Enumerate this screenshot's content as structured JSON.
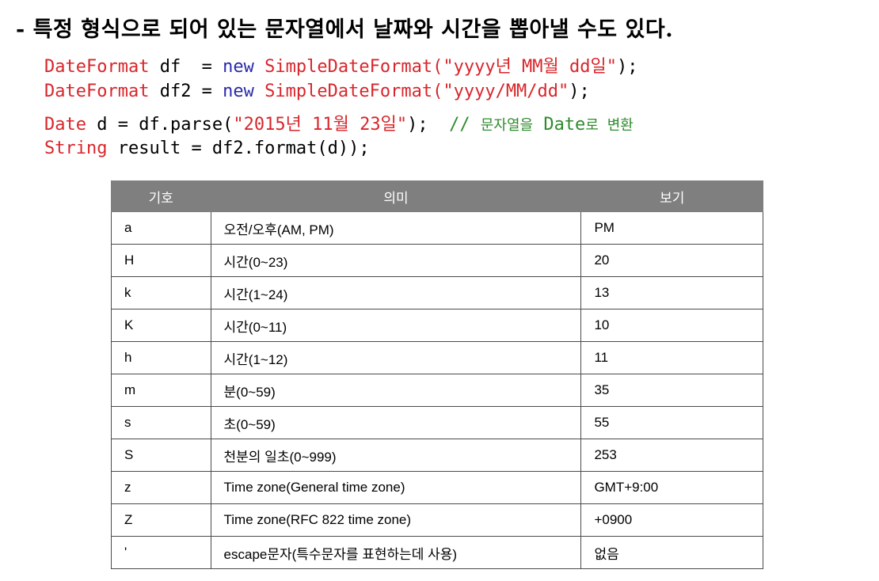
{
  "heading": "- 특정 형식으로 되어 있는 문자열에서 날짜와 시간을 뽑아낼 수도 있다.",
  "code": {
    "line1": {
      "type": "DateFormat",
      "var": " df  = ",
      "kw": "new",
      "cls": " SimpleDateFormat(",
      "str": "\"yyyy년 MM월 dd일\"",
      "end": ");"
    },
    "line2": {
      "type": "DateFormat",
      "var": " df2 = ",
      "kw": "new",
      "cls": " SimpleDateFormat(",
      "str": "\"yyyy/MM/dd\"",
      "end": ");"
    },
    "line3": {
      "type": "Date",
      "pre": " d = df.parse(",
      "str": "\"2015년 11월 23일\"",
      "end": ");  ",
      "comment_a": "// ",
      "comment_b": "문자열을",
      "comment_c": " Date",
      "comment_d": "로 변환"
    },
    "line4": {
      "type": "String",
      "rest": " result = df2.format(d));"
    }
  },
  "table": {
    "headers": [
      "기호",
      "의미",
      "보기"
    ],
    "rows": [
      [
        "a",
        "오전/오후(AM, PM)",
        "PM"
      ],
      [
        "H",
        "시간(0~23)",
        "20"
      ],
      [
        "k",
        "시간(1~24)",
        "13"
      ],
      [
        "K",
        "시간(0~11)",
        "10"
      ],
      [
        "h",
        "시간(1~12)",
        "11"
      ],
      [
        "m",
        "분(0~59)",
        "35"
      ],
      [
        "s",
        "초(0~59)",
        "55"
      ],
      [
        "S",
        "천분의 일초(0~999)",
        "253"
      ],
      [
        "z",
        "Time zone(General time zone)",
        "GMT+9:00"
      ],
      [
        "Z",
        "Time zone(RFC 822 time zone)",
        "+0900"
      ],
      [
        "'",
        "escape문자(특수문자를 표현하는데 사용)",
        "없음"
      ]
    ]
  }
}
